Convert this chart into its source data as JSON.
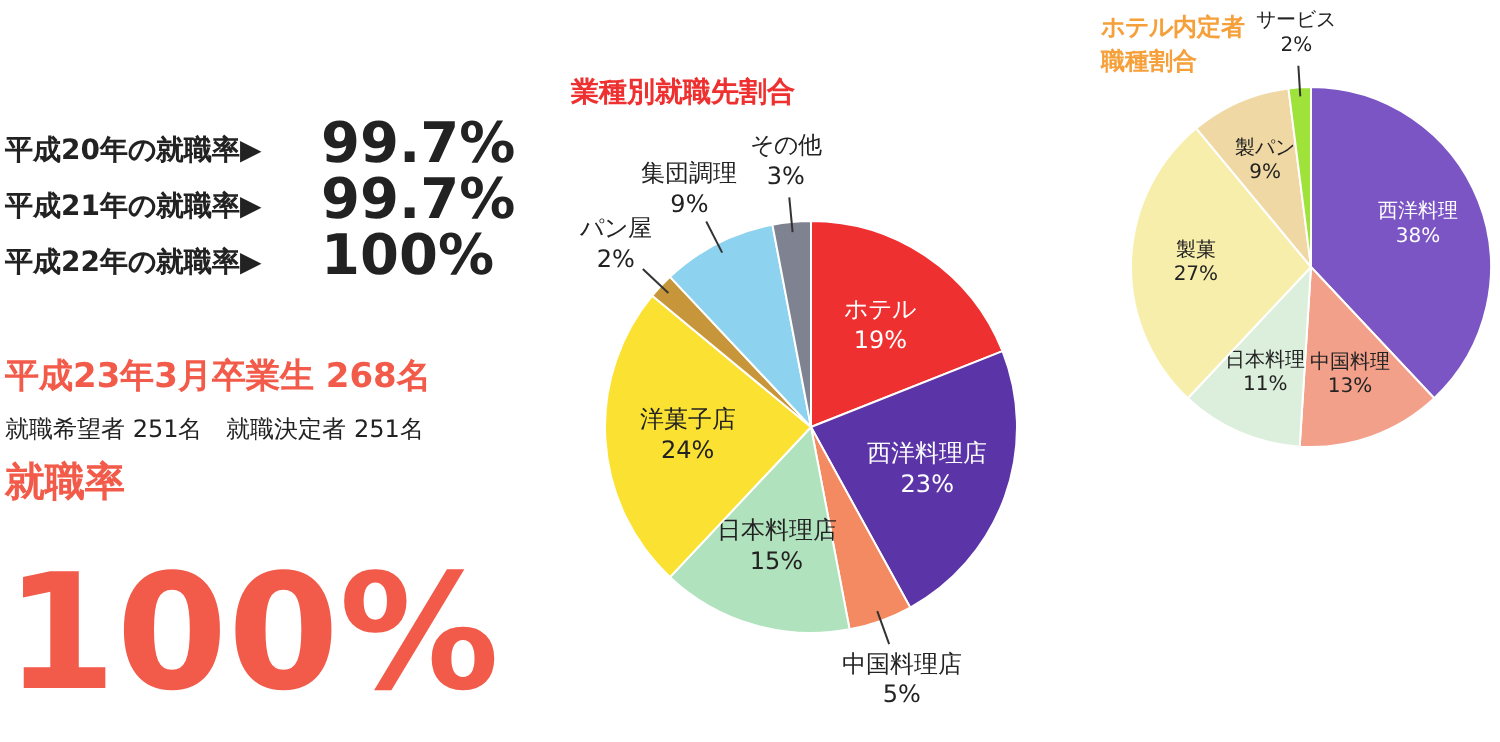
{
  "chart_data": [
    {
      "type": "other",
      "annotations": [
        "平成20年の就職率▶",
        "99.7%",
        "平成21年の就職率▶",
        "99.7%",
        "平成22年の就職率▶",
        "100%",
        "平成23年3月卒業生 268名",
        "就職希望者 251名　就職決定者 251名",
        "就職率",
        "100%"
      ]
    },
    {
      "type": "pie",
      "title": "業種別就職先割合",
      "categories": [
        "ホテル",
        "西洋料理店",
        "中国料理店",
        "日本料理店",
        "洋菓子店",
        "パン屋",
        "集団調理",
        "その他"
      ],
      "values": [
        19,
        23,
        5,
        15,
        24,
        2,
        9,
        3
      ],
      "value_labels": [
        "19%",
        "23%",
        "5%",
        "15%",
        "24%",
        "2%",
        "9%",
        "3%"
      ],
      "colors": [
        "#ee3130",
        "#5b34a8",
        "#f38a62",
        "#b0e2bd",
        "#fbe232",
        "#c8963a",
        "#8dd3ef",
        "#7f8290"
      ]
    },
    {
      "type": "pie",
      "title": "ホテル内定者職種割合",
      "categories": [
        "西洋料理",
        "中国料理",
        "日本料理",
        "製菓",
        "製パン",
        "サービス"
      ],
      "values": [
        38,
        13,
        11,
        27,
        9,
        2
      ],
      "value_labels": [
        "38%",
        "13%",
        "11%",
        "27%",
        "9%",
        "2%"
      ],
      "colors": [
        "#7b55c4",
        "#f2a08a",
        "#dcefdc",
        "#f8eeac",
        "#f0d8a4",
        "#9ee23a"
      ]
    }
  ]
}
